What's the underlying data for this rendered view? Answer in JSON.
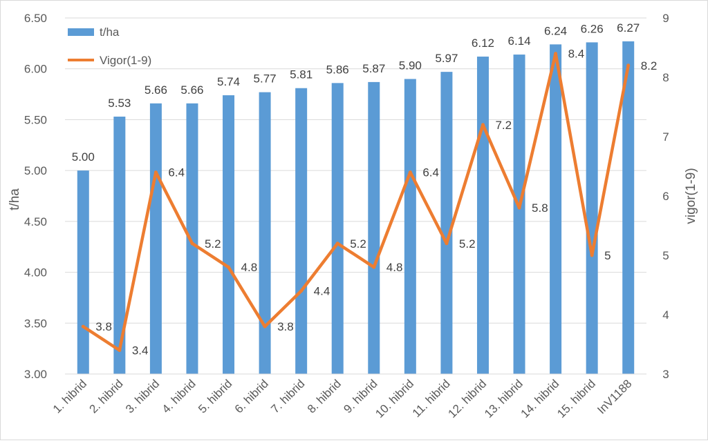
{
  "chart_data": {
    "type": "bar",
    "title": "",
    "categories": [
      "1. hibrid",
      "2. hibrid",
      "3. hibrid",
      "4. hibrid",
      "5. hibrid",
      "6. hibrid",
      "7. hibrid",
      "8. hibrid",
      "9. hibrid",
      "10. hibrid",
      "11. hibrid",
      "12. hibrid",
      "13. hibrid",
      "14. hibrid",
      "15. hibrid",
      "InV1188"
    ],
    "series": [
      {
        "name": "t/ha",
        "type": "bar",
        "axis": "left",
        "color": "#5b9bd5",
        "values": [
          5.0,
          5.53,
          5.66,
          5.66,
          5.74,
          5.77,
          5.81,
          5.86,
          5.87,
          5.9,
          5.97,
          6.12,
          6.14,
          6.24,
          6.26,
          6.27
        ],
        "labels": [
          "5.00",
          "5.53",
          "5.66",
          "5.66",
          "5.74",
          "5.77",
          "5.81",
          "5.86",
          "5.87",
          "5.90",
          "5.97",
          "6.12",
          "6.14",
          "6.24",
          "6.26",
          "6.27"
        ]
      },
      {
        "name": "Vigor(1-9)",
        "type": "line",
        "axis": "right",
        "color": "#ed7d31",
        "values": [
          3.8,
          3.4,
          6.4,
          5.2,
          4.8,
          3.8,
          4.4,
          5.2,
          4.8,
          6.4,
          5.2,
          7.2,
          5.8,
          8.4,
          5,
          8.2
        ],
        "labels": [
          "3.8",
          "3.4",
          "6.4",
          "5.2",
          "4.8",
          "3.8",
          "4.4",
          "5.2",
          "4.8",
          "6.4",
          "5.2",
          "7.2",
          "5.8",
          "8.4",
          "5",
          "8.2"
        ]
      }
    ],
    "y_left": {
      "label": "t/ha",
      "range": [
        3.0,
        6.5
      ],
      "ticks": [
        "3.00",
        "3.50",
        "4.00",
        "4.50",
        "5.00",
        "5.50",
        "6.00",
        "6.50"
      ]
    },
    "y_right": {
      "label": "vigor(1-9)",
      "range": [
        3,
        9
      ],
      "ticks": [
        "3",
        "4",
        "5",
        "6",
        "7",
        "8",
        "9"
      ]
    },
    "grid": true,
    "legend": "top-left"
  }
}
